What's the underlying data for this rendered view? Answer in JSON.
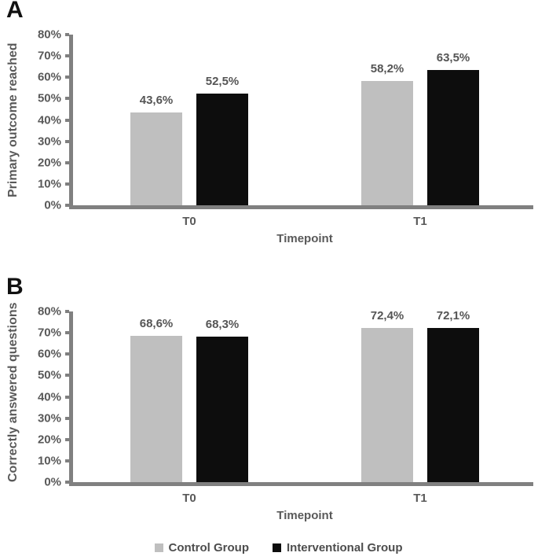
{
  "colors": {
    "control": "#bfbfbf",
    "interventional": "#0d0d0d",
    "axis": "#808080",
    "tick_text": "#595959",
    "label_text": "#555555"
  },
  "legend": [
    {
      "label": "Control Group",
      "color": "#bfbfbf"
    },
    {
      "label": "Interventional Group",
      "color": "#0d0d0d"
    }
  ],
  "chart_data": [
    {
      "type": "bar",
      "panel": "A",
      "ylabel": "Primary outcome reached",
      "xlabel": "Timepoint",
      "categories": [
        "T0",
        "T1"
      ],
      "series": [
        {
          "name": "Control Group",
          "color": "#bfbfbf",
          "values": [
            43.6,
            58.2
          ],
          "labels": [
            "43,6%",
            "58,2%"
          ]
        },
        {
          "name": "Interventional Group",
          "color": "#0d0d0d",
          "values": [
            52.5,
            63.5
          ],
          "labels": [
            "52,5%",
            "63,5%"
          ]
        }
      ],
      "ylim": [
        0,
        80
      ],
      "ytick_labels": [
        "0%",
        "10%",
        "20%",
        "30%",
        "40%",
        "50%",
        "60%",
        "70%",
        "80%"
      ],
      "grid": false,
      "legend_position": "bottom"
    },
    {
      "type": "bar",
      "panel": "B",
      "ylabel": "Correctly answered questions",
      "xlabel": "Timepoint",
      "categories": [
        "T0",
        "T1"
      ],
      "series": [
        {
          "name": "Control Group",
          "color": "#bfbfbf",
          "values": [
            68.6,
            72.4
          ],
          "labels": [
            "68,6%",
            "72,4%"
          ]
        },
        {
          "name": "Interventional Group",
          "color": "#0d0d0d",
          "values": [
            68.3,
            72.1
          ],
          "labels": [
            "68,3%",
            "72,1%"
          ]
        }
      ],
      "ylim": [
        0,
        80
      ],
      "ytick_labels": [
        "0%",
        "10%",
        "20%",
        "30%",
        "40%",
        "50%",
        "60%",
        "70%",
        "80%"
      ],
      "grid": false,
      "legend_position": "bottom"
    }
  ]
}
